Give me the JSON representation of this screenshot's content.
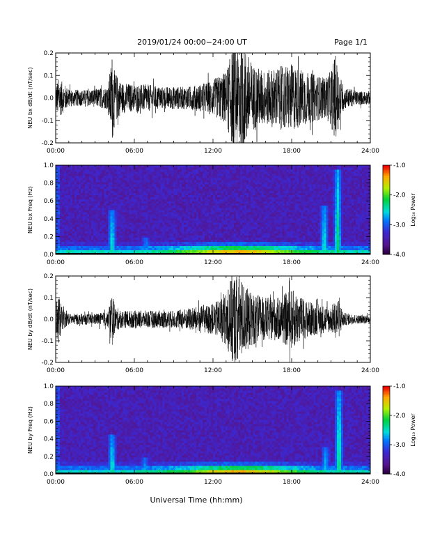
{
  "header": {
    "title": "2019/01/24  00:00−24:00 UT",
    "page": "Page 1/1"
  },
  "xlabel": "Universal Time (hh:mm)",
  "chart_data": [
    {
      "type": "line",
      "ylabel": "NEU bx dB/dt (nT/sec)",
      "xlim": [
        0,
        24
      ],
      "ylim": [
        -0.2,
        0.2
      ],
      "xticks": [
        "00:00",
        "06:00",
        "12:00",
        "18:00",
        "24:00"
      ],
      "yticks": [
        "-0.2",
        "-0.1",
        "0.0",
        "0.1",
        "0.2"
      ],
      "envelope": {
        "hours": [
          0,
          0.2,
          1,
          2,
          3,
          4,
          4.3,
          4.5,
          4.8,
          5,
          6,
          7,
          8,
          9,
          10,
          11,
          12,
          13,
          13.5,
          14,
          14.5,
          15,
          16,
          17,
          18,
          19,
          20,
          20.5,
          21,
          21.3,
          21.7,
          22,
          23,
          24
        ],
        "amplitude": [
          0.05,
          0.09,
          0.04,
          0.035,
          0.04,
          0.05,
          0.2,
          0.12,
          0.09,
          0.07,
          0.06,
          0.06,
          0.05,
          0.05,
          0.05,
          0.06,
          0.08,
          0.12,
          0.22,
          0.25,
          0.22,
          0.15,
          0.12,
          0.14,
          0.15,
          0.12,
          0.1,
          0.09,
          0.12,
          0.2,
          0.1,
          0.05,
          0.03,
          0.03
        ]
      }
    },
    {
      "type": "heatmap",
      "ylabel": "NEU bx Freq (Hz)",
      "xlim": [
        0,
        24
      ],
      "ylim": [
        0.0,
        1.0
      ],
      "xticks": [
        "00:00",
        "06:00",
        "12:00",
        "18:00",
        "24:00"
      ],
      "yticks": [
        "0.0",
        "0.2",
        "0.4",
        "0.6",
        "0.8",
        "1.0"
      ],
      "colorbar": {
        "label": "Log₁₀ Power",
        "range": [
          -4.0,
          -1.0
        ],
        "ticks": [
          "-4.0",
          "-3.0",
          "-2.0",
          "-1.0"
        ]
      },
      "features": [
        {
          "hour": 4.3,
          "fmax": 0.5,
          "strength": 0.6
        },
        {
          "hour": 6.9,
          "fmax": 0.2,
          "strength": 0.4
        },
        {
          "hour": 20.5,
          "fmax": 0.55,
          "strength": 0.6
        },
        {
          "hour": 21.5,
          "fmax": 0.95,
          "strength": 0.7
        }
      ]
    },
    {
      "type": "line",
      "ylabel": "NEU by dB/dt (nT/sec)",
      "xlim": [
        0,
        24
      ],
      "ylim": [
        -0.2,
        0.2
      ],
      "xticks": [
        "00:00",
        "06:00",
        "12:00",
        "18:00",
        "24:00"
      ],
      "yticks": [
        "-0.2",
        "-0.1",
        "0.0",
        "0.1",
        "0.2"
      ],
      "envelope": {
        "hours": [
          0,
          0.2,
          0.5,
          1,
          2,
          3,
          4,
          4.3,
          4.5,
          5,
          6,
          7,
          8,
          9,
          10,
          11,
          12,
          13,
          13.5,
          14,
          14.5,
          15,
          16,
          17,
          18,
          19,
          20,
          21,
          21.5,
          22,
          23,
          24
        ],
        "amplitude": [
          0.06,
          0.12,
          0.05,
          0.025,
          0.025,
          0.025,
          0.035,
          0.14,
          0.06,
          0.04,
          0.04,
          0.04,
          0.04,
          0.04,
          0.05,
          0.06,
          0.07,
          0.12,
          0.22,
          0.2,
          0.15,
          0.12,
          0.1,
          0.1,
          0.14,
          0.09,
          0.07,
          0.06,
          0.1,
          0.03,
          0.02,
          0.02
        ]
      }
    },
    {
      "type": "heatmap",
      "ylabel": "NEU by Freq (Hz)",
      "xlim": [
        0,
        24
      ],
      "ylim": [
        0.0,
        1.0
      ],
      "xticks": [
        "00:00",
        "06:00",
        "12:00",
        "18:00",
        "24:00"
      ],
      "yticks": [
        "0.0",
        "0.2",
        "0.4",
        "0.6",
        "0.8",
        "1.0"
      ],
      "colorbar": {
        "label": "Log₁₀ Power",
        "range": [
          -4.0,
          -1.0
        ],
        "ticks": [
          "-4.0",
          "-3.0",
          "-2.0",
          "-1.0"
        ]
      },
      "features": [
        {
          "hour": 4.3,
          "fmax": 0.45,
          "strength": 0.6
        },
        {
          "hour": 6.8,
          "fmax": 0.18,
          "strength": 0.4
        },
        {
          "hour": 20.6,
          "fmax": 0.3,
          "strength": 0.5
        },
        {
          "hour": 21.6,
          "fmax": 0.95,
          "strength": 0.7
        }
      ]
    }
  ]
}
